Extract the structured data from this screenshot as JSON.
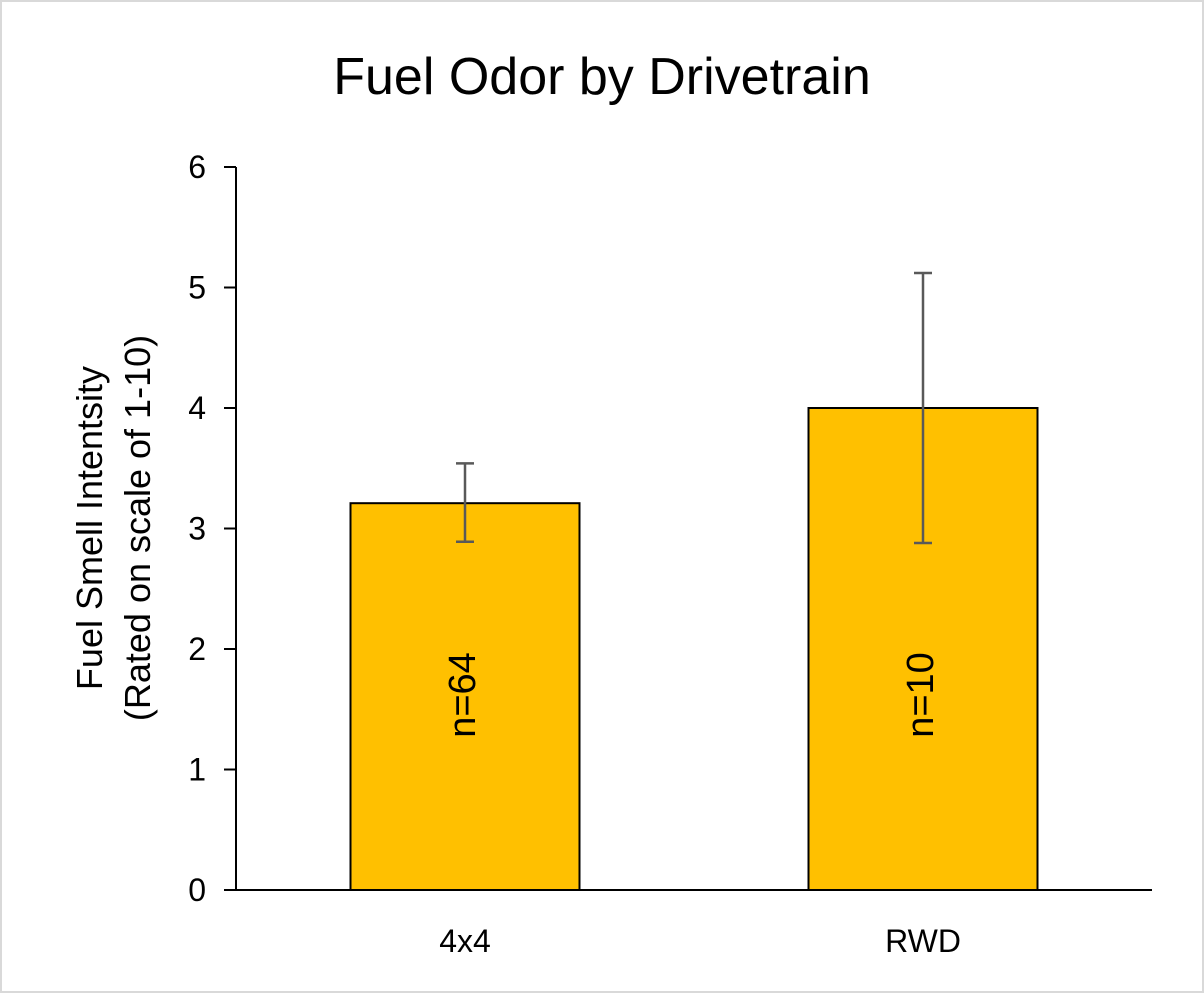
{
  "chart_data": {
    "type": "bar",
    "title": "Fuel Odor by Drivetrain",
    "ylabel_lines": [
      "Fuel Smell Intentsity",
      "(Rated on scale of 1-10)"
    ],
    "xlabel": "",
    "categories": [
      "4x4",
      "RWD"
    ],
    "values": [
      3.21,
      4.0
    ],
    "error_low": [
      2.89,
      2.88
    ],
    "error_high": [
      3.54,
      5.12
    ],
    "bar_labels": [
      "n=64",
      "n=10"
    ],
    "ylim": [
      0,
      6
    ],
    "yticks": [
      0,
      1,
      2,
      3,
      4,
      5,
      6
    ],
    "grid": false,
    "legend": "none",
    "colors": {
      "bar_fill": "#ffc000",
      "bar_stroke": "#000000",
      "error_bar": "#595959",
      "axis": "#000000"
    }
  }
}
